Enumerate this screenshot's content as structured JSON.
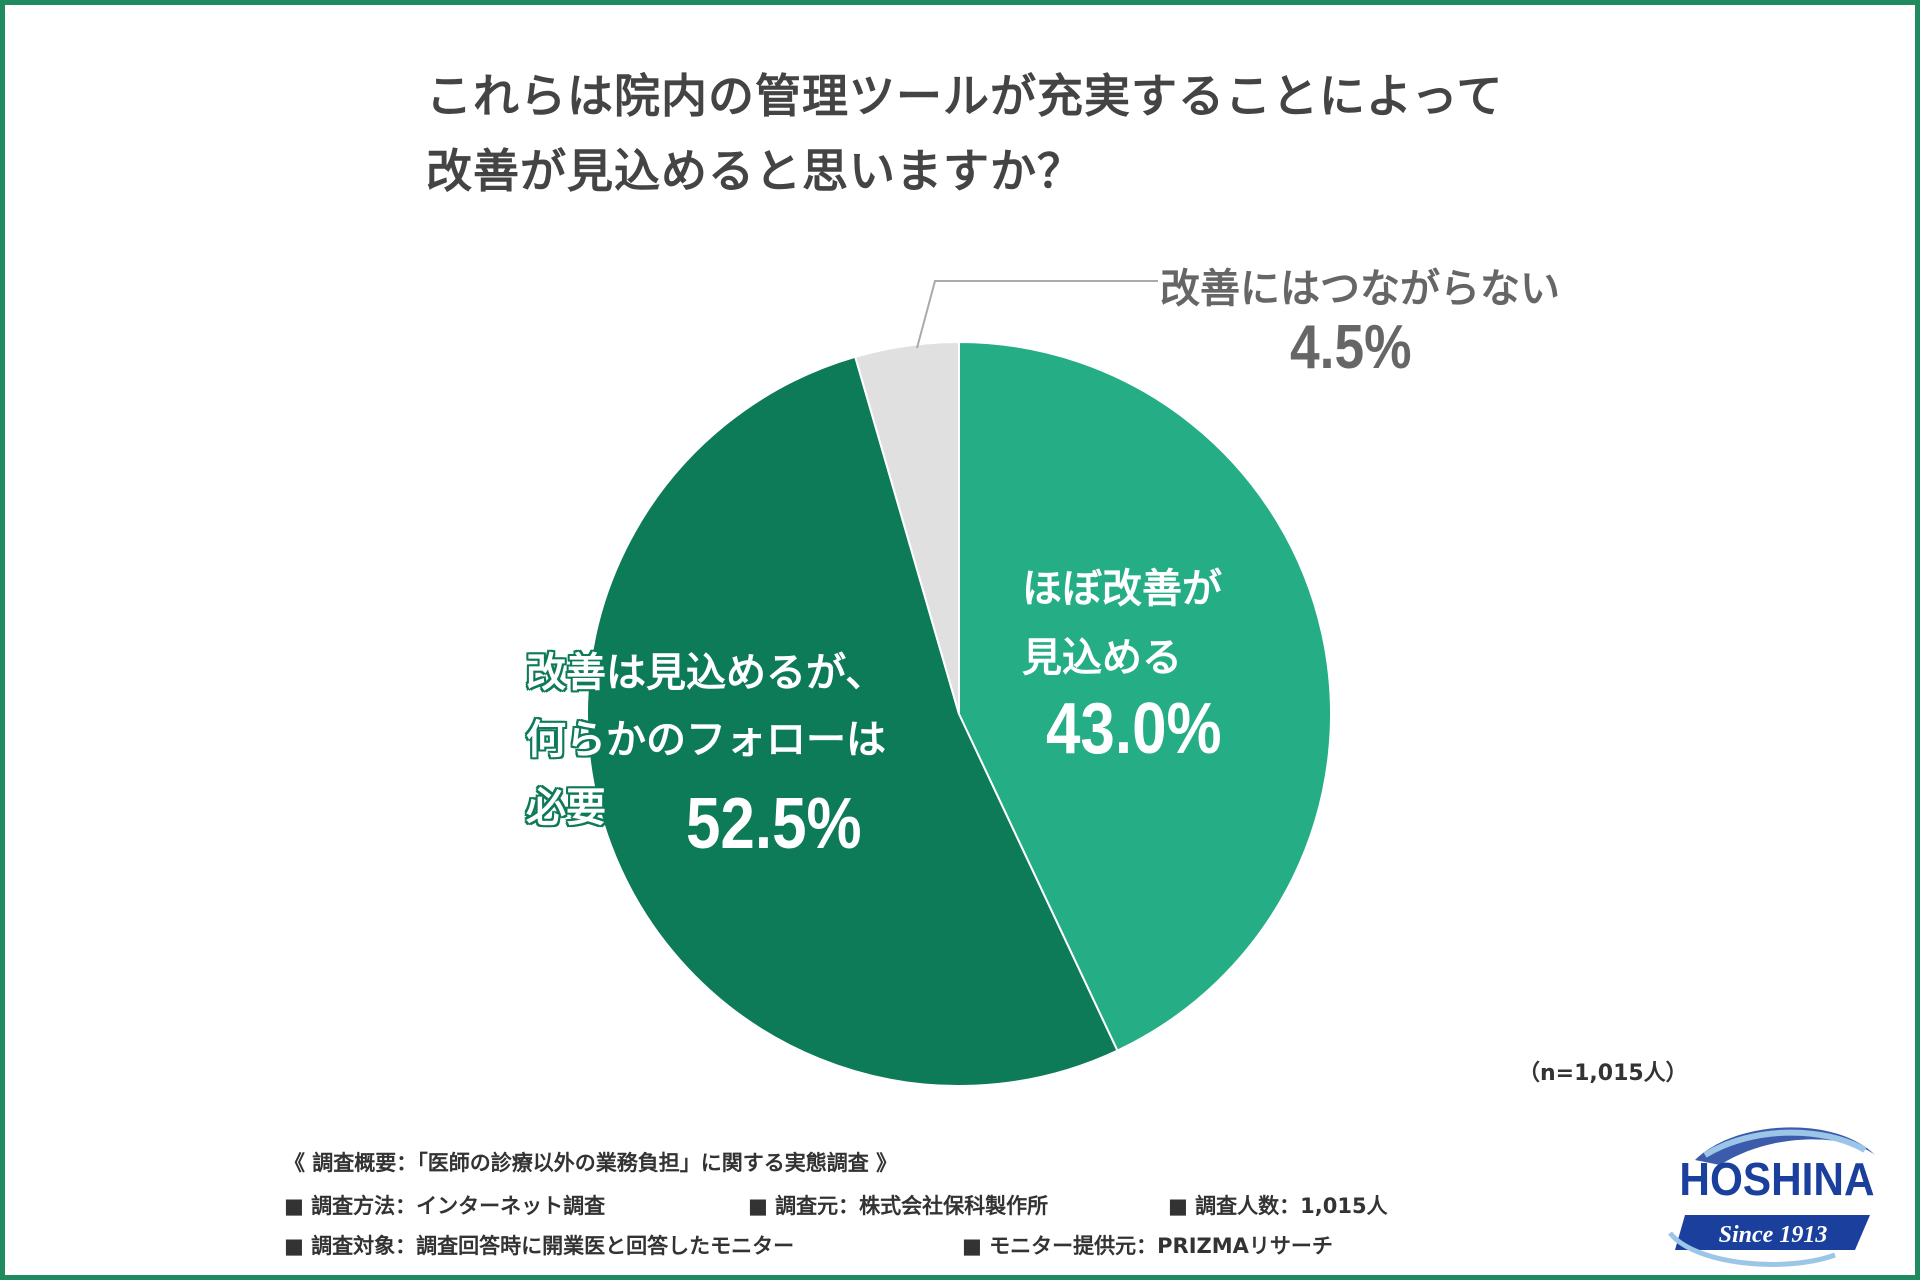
{
  "title": {
    "line1": "これらは院内の管理ツールが充実することによって",
    "line2": "改善が見込めると思いますか？"
  },
  "chart_data": {
    "type": "pie",
    "slices": [
      {
        "label_line1": "ほぼ改善が",
        "label_line2": "見込める",
        "value": 43.0,
        "value_text": "43.0%",
        "color": "#25ad85"
      },
      {
        "label_line1": "改善は見込めるが、",
        "label_line2": "何らかのフォローは",
        "label_line3": "必要",
        "value": 52.5,
        "value_text": "52.5%",
        "color": "#0d7a58"
      },
      {
        "label_line1": "改善にはつながらない",
        "value": 4.5,
        "value_text": "4.5%",
        "color": "#e0e0e0"
      }
    ],
    "start": "12 o'clock, clockwise"
  },
  "sample_note": "（n=1,015人）",
  "survey": {
    "header": "《 調査概要：「医師の診療以外の業務負担」に関する実態調査 》",
    "method": "■ 調査方法：インターネット調査",
    "source": "■ 調査元：株式会社保科製作所",
    "count": "■ 調査人数：1,015人",
    "target": "■ 調査対象：調査回答時に開業医と回答したモニター",
    "provider": "■ モニター提供元：PRIZMAリサーチ"
  },
  "logo": {
    "name": "HOSHINA",
    "tagline": "Since 1913"
  },
  "colors": {
    "frame": "#1f8a5f",
    "title": "#444444"
  }
}
